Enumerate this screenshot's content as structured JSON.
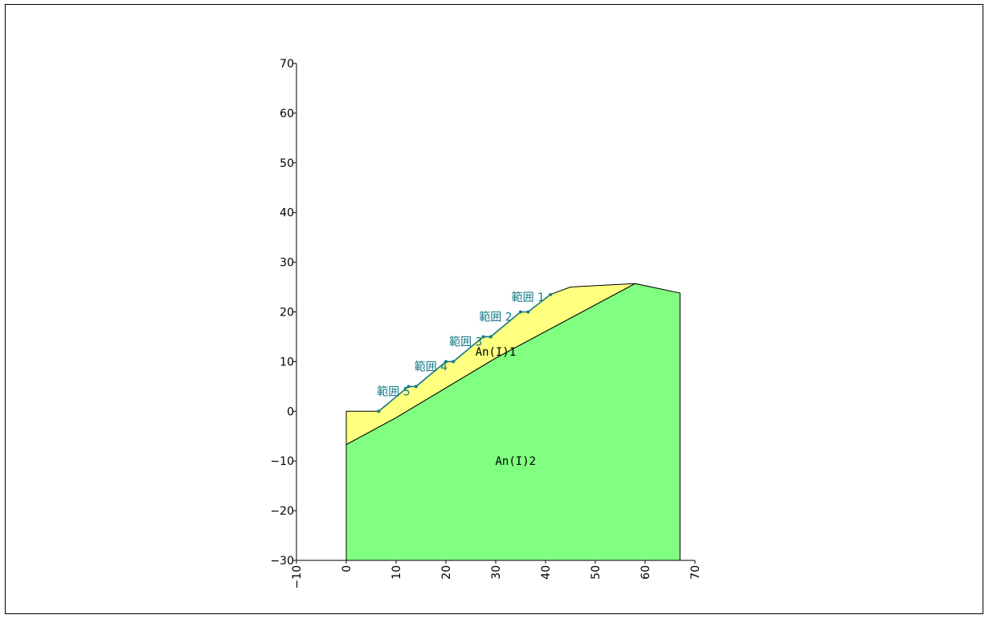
{
  "chart_data": {
    "type": "area",
    "xlim": [
      -10,
      70
    ],
    "ylim": [
      -30,
      70
    ],
    "x_ticks": [
      -10,
      0,
      10,
      20,
      30,
      40,
      50,
      60,
      70
    ],
    "y_ticks": [
      -30,
      -20,
      -10,
      0,
      10,
      20,
      30,
      40,
      50,
      60,
      70
    ],
    "grid": false,
    "layers": [
      {
        "name": "An(I)1",
        "color": "#ffff80",
        "polygon": [
          [
            0,
            0
          ],
          [
            6.5,
            0
          ],
          [
            12.5,
            5
          ],
          [
            14,
            5
          ],
          [
            20,
            10
          ],
          [
            21.5,
            10
          ],
          [
            27.5,
            15
          ],
          [
            29,
            15
          ],
          [
            35,
            20
          ],
          [
            36.5,
            20
          ],
          [
            41,
            23.5
          ],
          [
            45,
            25
          ],
          [
            58,
            25.7
          ],
          [
            30,
            10.7
          ],
          [
            10,
            -1.3
          ],
          [
            5,
            -4
          ],
          [
            0,
            -6.7
          ]
        ]
      },
      {
        "name": "An(I)2",
        "color": "#80ff80",
        "polygon": [
          [
            0,
            -6.7
          ],
          [
            5,
            -4
          ],
          [
            10,
            -1.3
          ],
          [
            30,
            10.7
          ],
          [
            58,
            25.7
          ],
          [
            67,
            23.8
          ],
          [
            67,
            -30
          ],
          [
            0,
            -30
          ]
        ]
      }
    ],
    "surface_profile": [
      [
        6.5,
        0
      ],
      [
        12.5,
        5
      ],
      [
        14,
        5
      ],
      [
        20,
        10
      ],
      [
        21.5,
        10
      ],
      [
        27.5,
        15
      ],
      [
        29,
        15
      ],
      [
        35,
        20
      ],
      [
        36.5,
        20
      ],
      [
        41,
        23.5
      ]
    ],
    "surface_color": "#137a86",
    "ranges": [
      {
        "label": "範囲 1",
        "x": 36.5,
        "y": 23
      },
      {
        "label": "範囲 2",
        "x": 30,
        "y": 19
      },
      {
        "label": "範囲 3",
        "x": 24,
        "y": 14
      },
      {
        "label": "範囲 4",
        "x": 17,
        "y": 9
      },
      {
        "label": "範囲 5",
        "x": 9.5,
        "y": 4
      }
    ],
    "layer_labels": [
      {
        "text": "An(I)1",
        "x": 30,
        "y": 12
      },
      {
        "text": "An(I)2",
        "x": 34,
        "y": -10
      }
    ]
  }
}
